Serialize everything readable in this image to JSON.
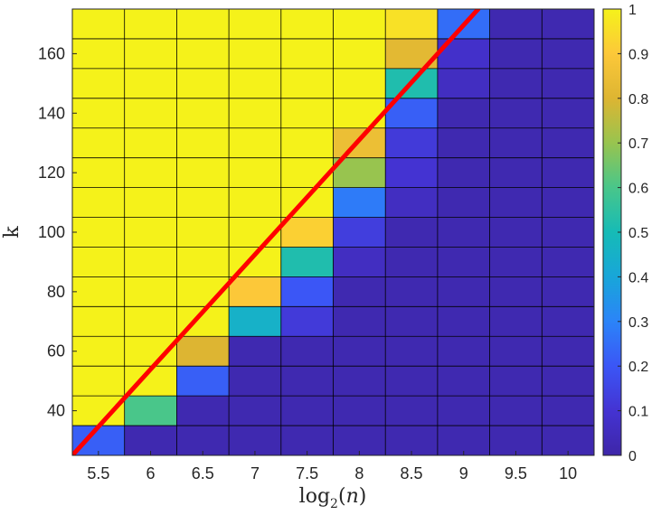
{
  "chart_data": {
    "type": "heatmap",
    "title": "",
    "xlabel": {
      "fn": "log",
      "sub": "2",
      "open": "(",
      "var": "n",
      "close": ")"
    },
    "ylabel": "k",
    "x": [
      5.5,
      6,
      6.5,
      7,
      7.5,
      8,
      8.5,
      9,
      9.5,
      10
    ],
    "y": [
      30,
      40,
      50,
      60,
      70,
      80,
      90,
      100,
      110,
      120,
      130,
      140,
      150,
      160,
      170
    ],
    "xlim": [
      5.25,
      10.25
    ],
    "ylim": [
      25,
      175
    ],
    "x_ticks": [
      "5.5",
      "6",
      "6.5",
      "7",
      "7.5",
      "8",
      "8.5",
      "9",
      "9.5",
      "10"
    ],
    "y_ticks": [
      40,
      60,
      80,
      100,
      120,
      140,
      160
    ],
    "grid": true,
    "colormap": "parula",
    "colorbar": {
      "range": [
        0,
        1
      ],
      "ticks": [
        "0",
        "0.1",
        "0.2",
        "0.3",
        "0.4",
        "0.5",
        "0.6",
        "0.7",
        "0.8",
        "0.9",
        "1"
      ]
    },
    "z": [
      [
        0.22,
        0.02,
        0.02,
        0.02,
        0.02,
        0.02,
        0.02,
        0.02,
        0.02,
        0.02
      ],
      [
        1,
        0.6,
        0.02,
        0.02,
        0.02,
        0.02,
        0.02,
        0.02,
        0.02,
        0.02
      ],
      [
        1,
        1,
        0.22,
        0.02,
        0.02,
        0.02,
        0.02,
        0.02,
        0.02,
        0.02
      ],
      [
        1,
        1,
        0.8,
        0.02,
        0.02,
        0.02,
        0.02,
        0.02,
        0.02,
        0.02
      ],
      [
        1,
        1,
        1,
        0.45,
        0.12,
        0.02,
        0.02,
        0.02,
        0.02,
        0.02
      ],
      [
        1,
        1,
        1,
        0.9,
        0.2,
        0.02,
        0.02,
        0.02,
        0.02,
        0.02
      ],
      [
        1,
        1,
        1,
        1,
        0.52,
        0.06,
        0.02,
        0.02,
        0.02,
        0.02
      ],
      [
        1,
        1,
        1,
        1,
        0.92,
        0.13,
        0.02,
        0.02,
        0.02,
        0.02
      ],
      [
        1,
        1,
        1,
        1,
        1,
        0.28,
        0.06,
        0.02,
        0.02,
        0.02
      ],
      [
        1,
        1,
        1,
        1,
        1,
        0.7,
        0.1,
        0.02,
        0.02,
        0.02
      ],
      [
        1,
        1,
        1,
        1,
        1,
        0.85,
        0.12,
        0.02,
        0.02,
        0.02
      ],
      [
        1,
        1,
        1,
        1,
        1,
        1,
        0.22,
        0.02,
        0.02,
        0.02
      ],
      [
        1,
        1,
        1,
        1,
        1,
        1,
        0.52,
        0.06,
        0.02,
        0.02
      ],
      [
        1,
        1,
        1,
        1,
        1,
        1,
        0.82,
        0.08,
        0.02,
        0.02
      ],
      [
        1,
        1,
        1,
        1,
        1,
        1,
        0.96,
        0.25,
        0.02,
        0.02
      ]
    ],
    "line": {
      "color": "#ff0000",
      "x": [
        5.25,
        9.14
      ],
      "y": [
        25,
        175
      ]
    },
    "colors": {
      "line": "#ff0000",
      "grid": "#000000",
      "text": "#262626"
    }
  }
}
